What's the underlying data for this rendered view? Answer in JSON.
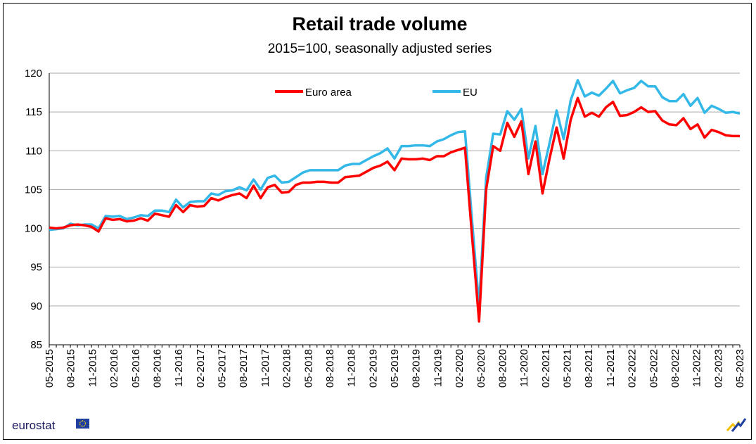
{
  "chart_data": {
    "type": "line",
    "title": "Retail trade volume",
    "subtitle": "2015=100, seasonally adjusted series",
    "xlabel": "",
    "ylabel": "",
    "ylim": [
      85,
      120
    ],
    "yticks": [
      85,
      90,
      95,
      100,
      105,
      110,
      115,
      120
    ],
    "grid": true,
    "legend_position": "top-center",
    "x_start": "05-2015",
    "x_end": "05-2023",
    "x_tick_labels": [
      "05-2015",
      "08-2015",
      "11-2015",
      "02-2016",
      "05-2016",
      "08-2016",
      "11-2016",
      "02-2017",
      "05-2017",
      "08-2017",
      "11-2017",
      "02-2018",
      "05-2018",
      "08-2018",
      "11-2018",
      "02-2019",
      "05-2019",
      "08-2019",
      "11-2019",
      "02-2020",
      "05-2020",
      "08-2020",
      "11-2020",
      "02-2021",
      "05-2021",
      "08-2021",
      "11-2021",
      "02-2022",
      "05-2022",
      "08-2022",
      "11-2022",
      "02-2023",
      "05-2023"
    ],
    "series": [
      {
        "name": "Euro area",
        "color": "#ff0000",
        "values": [
          100.1,
          100.0,
          100.1,
          100.4,
          100.5,
          100.4,
          100.2,
          99.6,
          101.3,
          101.1,
          101.2,
          100.9,
          101.0,
          101.3,
          101.0,
          101.9,
          101.7,
          101.5,
          103.0,
          102.1,
          103.0,
          102.8,
          102.9,
          103.9,
          103.6,
          104.0,
          104.3,
          104.5,
          103.9,
          105.5,
          103.9,
          105.3,
          105.6,
          104.6,
          104.7,
          105.6,
          105.9,
          105.9,
          106.0,
          106.0,
          105.9,
          105.9,
          106.6,
          106.7,
          106.8,
          107.3,
          107.8,
          108.1,
          108.6,
          107.5,
          109.0,
          108.9,
          108.9,
          109.0,
          108.8,
          109.3,
          109.3,
          109.8,
          110.1,
          110.4,
          99.0,
          88.0,
          105.0,
          110.6,
          110.0,
          113.6,
          111.8,
          113.8,
          107.0,
          111.2,
          104.5,
          109.0,
          113.0,
          109.0,
          114.0,
          116.8,
          114.4,
          114.9,
          114.4,
          115.6,
          116.3,
          114.5,
          114.6,
          115.0,
          115.6,
          115.0,
          115.1,
          113.9,
          113.4,
          113.3,
          114.2,
          112.8,
          113.4,
          111.7,
          112.7,
          112.4,
          112.0,
          111.9,
          111.9
        ]
      },
      {
        "name": "EU",
        "color": "#33b8e8",
        "values": [
          99.8,
          99.9,
          100.0,
          100.6,
          100.4,
          100.5,
          100.5,
          100.0,
          101.6,
          101.5,
          101.6,
          101.2,
          101.4,
          101.7,
          101.6,
          102.3,
          102.3,
          102.1,
          103.7,
          102.7,
          103.4,
          103.5,
          103.5,
          104.5,
          104.3,
          104.8,
          104.9,
          105.3,
          104.9,
          106.3,
          105.0,
          106.5,
          106.8,
          105.9,
          106.0,
          106.6,
          107.2,
          107.5,
          107.5,
          107.5,
          107.5,
          107.5,
          108.1,
          108.3,
          108.3,
          108.8,
          109.3,
          109.7,
          110.3,
          109.0,
          110.6,
          110.6,
          110.7,
          110.7,
          110.6,
          111.2,
          111.5,
          112.0,
          112.4,
          112.5,
          101.0,
          90.0,
          106.5,
          112.2,
          112.1,
          115.1,
          114.0,
          115.4,
          109.0,
          113.2,
          107.0,
          111.0,
          115.2,
          111.5,
          116.5,
          119.1,
          117.0,
          117.5,
          117.1,
          118.0,
          119.0,
          117.4,
          117.8,
          118.1,
          119.0,
          118.3,
          118.3,
          116.9,
          116.4,
          116.4,
          117.3,
          115.8,
          116.8,
          114.9,
          115.8,
          115.4,
          114.9,
          115.0,
          114.8
        ]
      }
    ]
  },
  "branding": {
    "logo_text": "eurostat"
  },
  "colors": {
    "grid": "#a6a6a6",
    "axis": "#000000",
    "eu_flag": "#1f3f9f",
    "eu_stars": "#ffd500"
  }
}
